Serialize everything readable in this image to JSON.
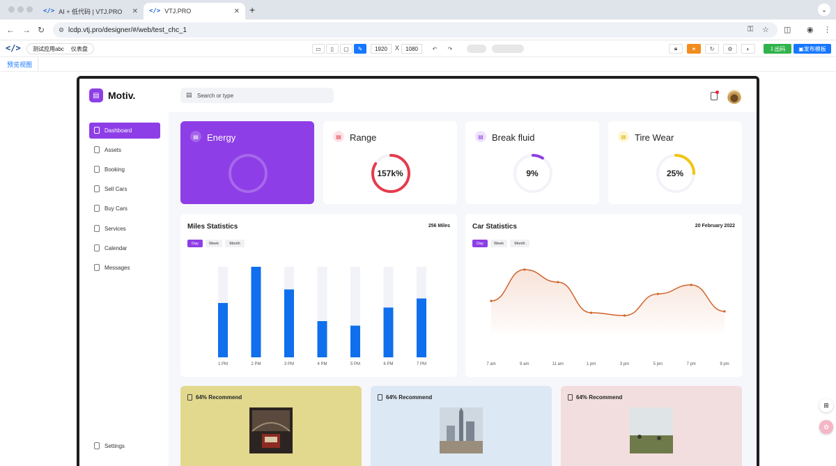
{
  "browser": {
    "tabs": [
      {
        "label": "AI + 低代码 | VTJ.PRO",
        "icon": "</>",
        "close": "✕"
      },
      {
        "label": "VTJ.PRO",
        "icon": "</>",
        "close": "✕"
      }
    ],
    "new_tab": "+",
    "url": "lcdp.vtj.pro/designer/#/web/test_chc_1"
  },
  "designer": {
    "logo": "</>",
    "app_name": "测试应用abc",
    "page_name": "仪表盘",
    "width": "1920",
    "size_sep": "X",
    "height": "1080",
    "toggle1": "",
    "toggle2": "",
    "export_label": "出码",
    "publish_label": "发布模板",
    "preview_tab": "预览视图"
  },
  "app": {
    "brand": "Motiv.",
    "search_placeholder": "Search or type",
    "sidebar": {
      "items": [
        {
          "label": "Dashboard",
          "active": true
        },
        {
          "label": "Assets"
        },
        {
          "label": "Booking"
        },
        {
          "label": "Sell Cars"
        },
        {
          "label": "Buy Cars"
        },
        {
          "label": "Services"
        },
        {
          "label": "Calendar"
        },
        {
          "label": "Messages"
        }
      ],
      "settings": "Settings"
    },
    "stats": [
      {
        "title": "Energy",
        "value": "",
        "fraction": 0,
        "color": "#8e3ee6"
      },
      {
        "title": "Range",
        "value": "157k%",
        "fraction": 0.84,
        "color": "#e53b4c"
      },
      {
        "title": "Break fluid",
        "value": "9%",
        "fraction": 0.09,
        "color": "#8e3ee6"
      },
      {
        "title": "Tire Wear",
        "value": "25%",
        "fraction": 0.25,
        "color": "#f1c40f"
      }
    ],
    "miles": {
      "title": "Miles Statistics",
      "meta": "256 Miles",
      "pills": [
        "Day",
        "Week",
        "Month"
      ]
    },
    "car": {
      "title": "Car Statistics",
      "meta": "20 February 2022",
      "pills": [
        "Day",
        "Week",
        "Month"
      ]
    },
    "recommend": [
      {
        "title": "64% Recommend",
        "bg": "#e2d98f"
      },
      {
        "title": "64% Recommend",
        "bg": "#dce8f3"
      },
      {
        "title": "64% Recommend",
        "bg": "#f2dede"
      }
    ]
  },
  "chart_data": [
    {
      "type": "bar",
      "categories": [
        "1 PM",
        "2 PM",
        "3 PM",
        "4 PM",
        "5 PM",
        "6 PM",
        "7 PM"
      ],
      "values": [
        60,
        100,
        75,
        40,
        35,
        55,
        65
      ],
      "ylim": [
        0,
        100
      ],
      "color": "#0f6fec",
      "track_color": "#f1f3f8"
    },
    {
      "type": "area",
      "categories": [
        "7 am",
        "9 am",
        "11 am",
        "1 pm",
        "3 pm",
        "5 pm",
        "7 pm",
        "9 pm"
      ],
      "values": [
        45,
        90,
        72,
        28,
        24,
        55,
        68,
        30
      ],
      "ylim": [
        0,
        100
      ],
      "color": "#d2622a"
    }
  ]
}
